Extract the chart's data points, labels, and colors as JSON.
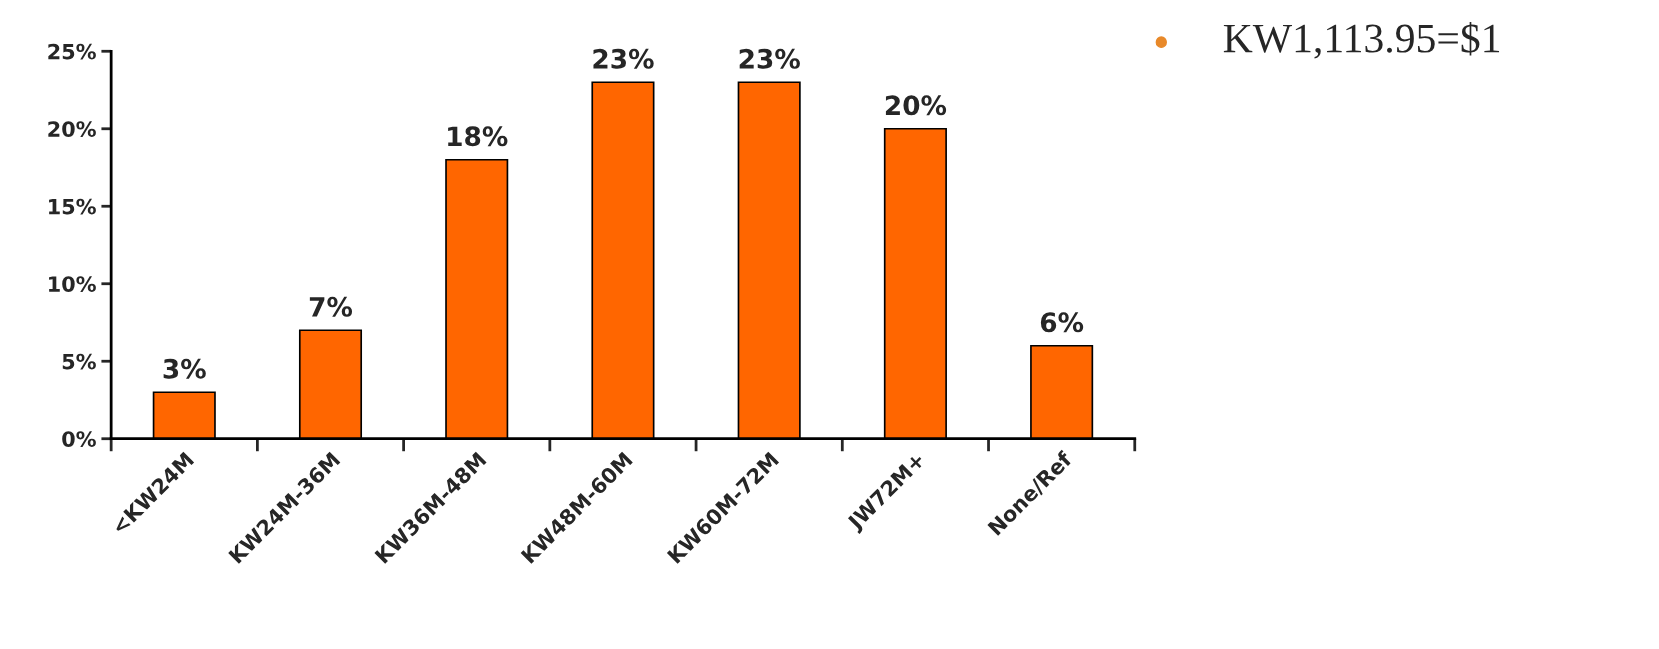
{
  "chart_data": {
    "type": "bar",
    "categories": [
      "<KW24M",
      "KW24M-36M",
      "KW36M-48M",
      "KW48M-60M",
      "KW60M-72M",
      "JW72M+",
      "None/Ref"
    ],
    "values": [
      3,
      7,
      18,
      23,
      23,
      20,
      6
    ],
    "value_labels": [
      "3%",
      "7%",
      "18%",
      "23%",
      "23%",
      "20%",
      "6%"
    ],
    "color": "#ff6600",
    "ylim": [
      0,
      25
    ],
    "yticks": [
      {
        "value": 0,
        "label": "0%"
      },
      {
        "value": 5,
        "label": "5%"
      },
      {
        "value": 10,
        "label": "10%"
      },
      {
        "value": 15,
        "label": "15%"
      },
      {
        "value": 20,
        "label": "20%"
      },
      {
        "value": 25,
        "label": "25%"
      }
    ],
    "grid": false,
    "annotations": [
      "KW1,113.95=$1"
    ]
  }
}
